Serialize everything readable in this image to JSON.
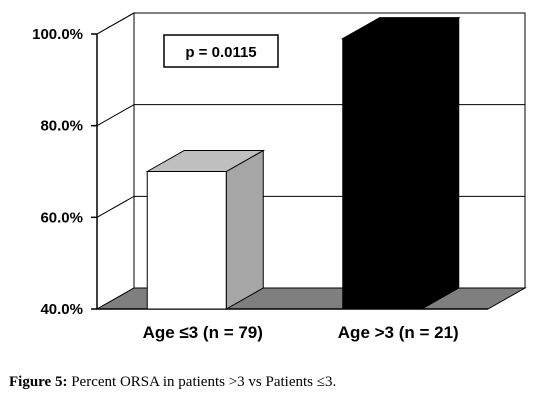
{
  "chart_data": {
    "type": "bar",
    "categories": [
      "Age ≤3 (n = 79)",
      "Age >3 (n = 21)"
    ],
    "values": [
      70.0,
      99.0
    ],
    "bar_colors": [
      "#ffffff",
      "#000000"
    ],
    "ylim": [
      40.0,
      100.0
    ],
    "yticks": [
      40.0,
      60.0,
      80.0,
      100.0
    ],
    "ytick_labels": [
      "40.0%",
      "60.0%",
      "80.0%",
      "100.0%"
    ],
    "grid": true,
    "three_d": true,
    "annotation": "p = 0.0115"
  },
  "caption": {
    "label": "Figure 5:",
    "text": " Percent ORSA in patients >3 vs Patients ≤3."
  }
}
